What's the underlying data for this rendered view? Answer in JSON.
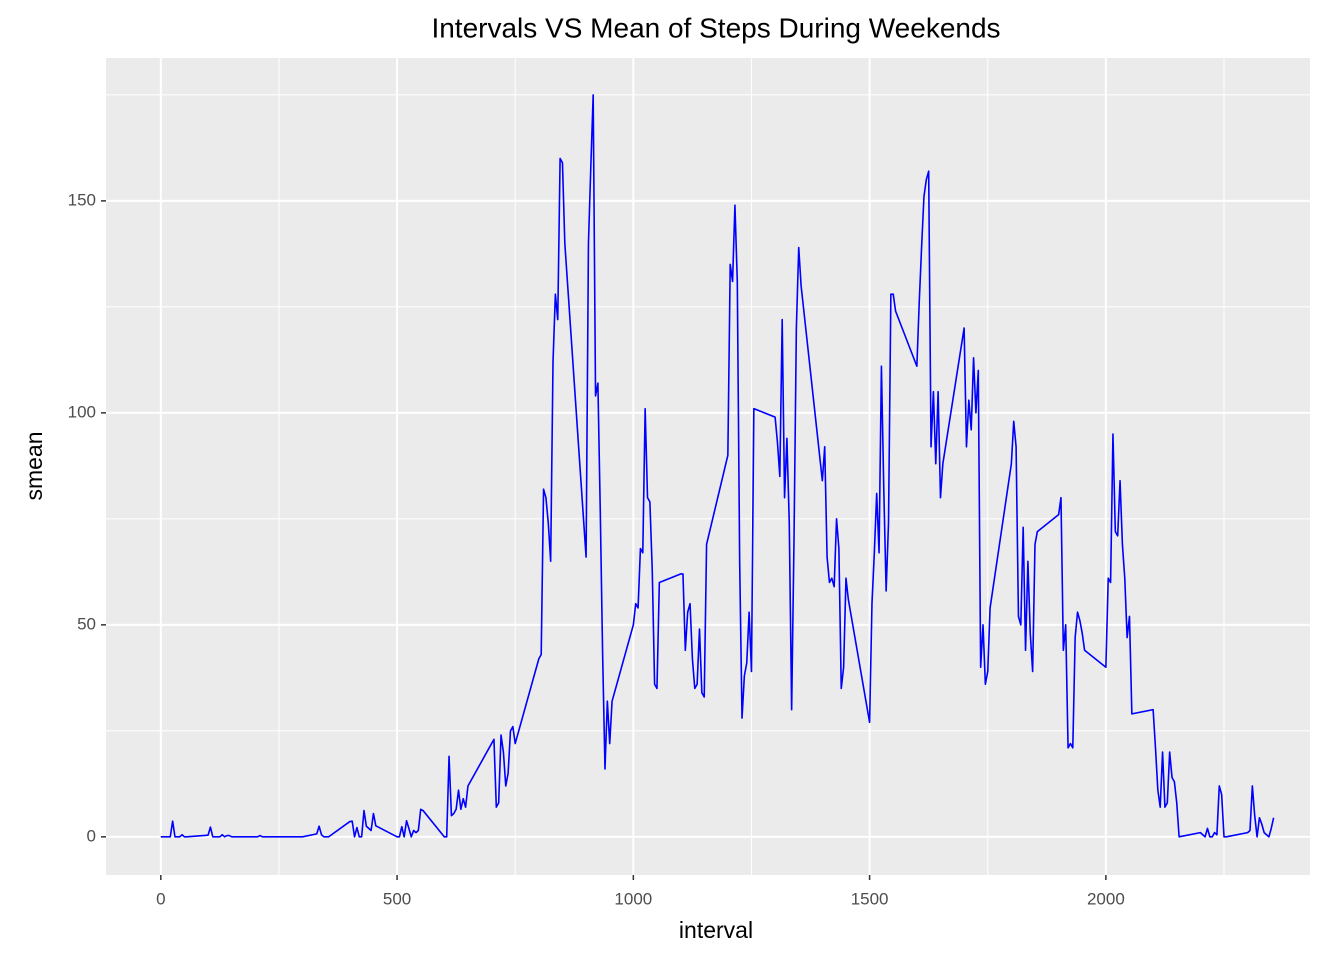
{
  "chart_data": {
    "type": "line",
    "title": "Intervals VS Mean of Steps During Weekends",
    "x_label": "interval",
    "y_label": "smean",
    "x": [
      0,
      5,
      10,
      15,
      20,
      25,
      30,
      35,
      40,
      45,
      50,
      55,
      100,
      105,
      110,
      115,
      120,
      125,
      130,
      135,
      140,
      145,
      150,
      155,
      200,
      205,
      210,
      215,
      220,
      300,
      330,
      335,
      340,
      345,
      350,
      355,
      400,
      405,
      410,
      415,
      420,
      425,
      430,
      435,
      440,
      445,
      450,
      455,
      500,
      505,
      510,
      515,
      520,
      525,
      530,
      535,
      540,
      545,
      550,
      555,
      600,
      605,
      610,
      615,
      620,
      625,
      630,
      635,
      640,
      645,
      650,
      655,
      700,
      705,
      710,
      715,
      720,
      725,
      730,
      735,
      740,
      745,
      750,
      755,
      800,
      805,
      810,
      815,
      820,
      825,
      830,
      835,
      840,
      845,
      850,
      855,
      900,
      905,
      910,
      915,
      920,
      925,
      930,
      935,
      940,
      945,
      950,
      955,
      1000,
      1005,
      1010,
      1015,
      1020,
      1025,
      1030,
      1035,
      1040,
      1045,
      1050,
      1055,
      1100,
      1105,
      1110,
      1115,
      1120,
      1125,
      1130,
      1135,
      1140,
      1145,
      1150,
      1155,
      1200,
      1205,
      1210,
      1215,
      1220,
      1225,
      1230,
      1235,
      1240,
      1245,
      1250,
      1255,
      1300,
      1305,
      1310,
      1315,
      1320,
      1325,
      1330,
      1335,
      1340,
      1345,
      1350,
      1355,
      1400,
      1405,
      1410,
      1415,
      1420,
      1425,
      1430,
      1435,
      1440,
      1445,
      1450,
      1455,
      1500,
      1505,
      1510,
      1515,
      1520,
      1525,
      1530,
      1535,
      1540,
      1545,
      1550,
      1555,
      1600,
      1605,
      1610,
      1615,
      1620,
      1625,
      1630,
      1635,
      1640,
      1645,
      1650,
      1655,
      1700,
      1705,
      1710,
      1715,
      1720,
      1725,
      1730,
      1735,
      1740,
      1745,
      1750,
      1755,
      1800,
      1805,
      1810,
      1815,
      1820,
      1825,
      1830,
      1835,
      1840,
      1845,
      1850,
      1855,
      1900,
      1905,
      1910,
      1915,
      1920,
      1925,
      1930,
      1935,
      1940,
      1945,
      1950,
      1955,
      2000,
      2005,
      2010,
      2015,
      2020,
      2025,
      2030,
      2035,
      2040,
      2045,
      2050,
      2055,
      2100,
      2105,
      2110,
      2115,
      2120,
      2125,
      2130,
      2135,
      2140,
      2145,
      2150,
      2155,
      2200,
      2205,
      2210,
      2215,
      2220,
      2225,
      2230,
      2235,
      2240,
      2245,
      2250,
      2255,
      2300,
      2305,
      2310,
      2315,
      2320,
      2325,
      2330,
      2335,
      2340,
      2345,
      2350,
      2355
    ],
    "series": [
      {
        "name": "smean",
        "color": "#0000ff",
        "values": [
          0,
          0,
          0,
          0,
          0,
          3.7,
          0,
          0,
          0,
          0.5,
          0,
          0,
          0.4,
          2.3,
          0,
          0,
          0,
          0,
          0.5,
          0,
          0.3,
          0.3,
          0,
          0,
          0,
          0,
          0.3,
          0,
          0,
          0,
          0.7,
          2.5,
          0.5,
          0,
          0,
          0,
          3.6,
          3.7,
          0,
          2.2,
          0,
          0,
          6.2,
          2.5,
          2,
          1.5,
          5.5,
          2.6,
          0,
          0,
          2.4,
          0,
          3.8,
          2,
          0,
          1.5,
          1,
          1.5,
          6.5,
          6.2,
          0,
          0,
          19,
          5,
          5.5,
          6.5,
          11,
          6.5,
          9,
          7,
          12,
          13,
          22,
          23,
          7,
          8,
          24,
          20,
          12,
          15,
          25,
          26,
          22,
          24,
          42,
          43,
          82,
          80,
          74,
          65,
          112,
          128,
          122,
          160,
          159,
          140,
          66,
          140,
          158,
          175,
          104,
          107,
          77,
          43,
          16,
          32,
          22,
          32,
          50,
          55,
          54,
          68,
          67,
          101,
          80,
          79,
          63,
          36,
          35,
          60,
          62,
          62,
          44,
          53,
          55,
          42,
          35,
          36,
          49,
          34,
          33,
          69,
          90,
          135,
          131,
          149,
          131,
          65,
          28,
          38,
          41,
          53,
          39,
          101,
          99,
          93,
          85,
          122,
          80,
          94,
          74,
          30,
          70,
          120,
          139,
          130,
          84,
          92,
          66,
          60,
          61,
          59,
          75,
          68,
          35,
          40,
          61,
          56,
          27,
          55,
          67,
          81,
          67,
          111,
          82,
          58,
          74,
          128,
          128,
          124,
          111,
          126,
          139,
          151,
          155,
          157,
          92,
          105,
          88,
          105,
          80,
          88,
          120,
          92,
          103,
          96,
          113,
          100,
          110,
          40,
          50,
          36,
          39,
          54,
          88,
          98,
          92,
          52,
          50,
          73,
          44,
          65,
          48,
          39,
          69,
          72,
          76,
          80,
          44,
          50,
          21,
          22,
          21,
          47,
          53,
          51,
          48,
          44,
          40,
          61,
          60,
          95,
          72,
          71,
          84,
          69,
          61,
          47,
          52,
          29,
          30,
          21,
          11,
          7,
          20,
          7,
          8,
          20,
          14,
          13,
          8,
          0,
          1,
          0.5,
          0,
          2,
          0,
          0,
          1,
          0.5,
          12,
          10,
          0,
          0,
          1,
          1.5,
          12,
          5,
          0,
          4.5,
          3,
          1,
          0.5,
          0,
          2,
          4.5
        ]
      }
    ],
    "xlim": [
      -116,
      2432
    ],
    "ylim": [
      -9,
      183.7
    ],
    "xticks": [
      0,
      500,
      1000,
      1500,
      2000
    ],
    "yticks": [
      0,
      50,
      100,
      150
    ],
    "grid": true
  }
}
